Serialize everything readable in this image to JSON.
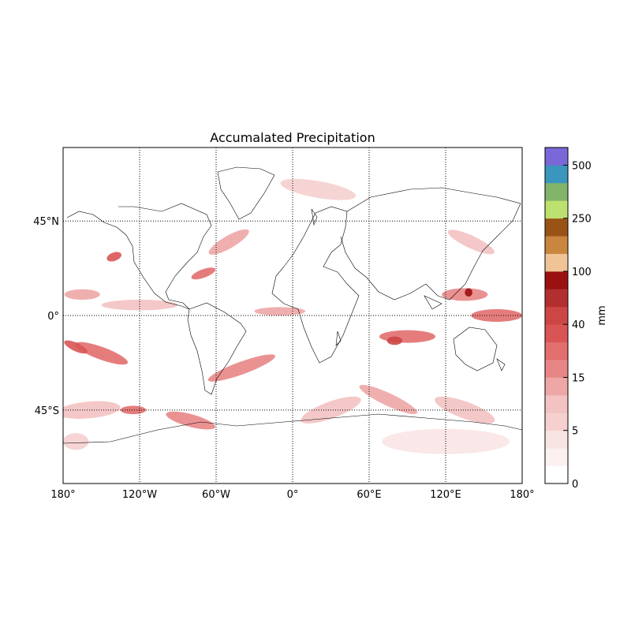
{
  "map": {
    "title": "Accumalated Precipitation",
    "projection": "cylindrical",
    "lon_range": [
      -180,
      180
    ],
    "lat_range": [
      -80,
      80
    ],
    "meridians": [
      {
        "lon": -180,
        "label": "180°"
      },
      {
        "lon": -120,
        "label": "120°W"
      },
      {
        "lon": -60,
        "label": "60°W"
      },
      {
        "lon": 0,
        "label": "0°"
      },
      {
        "lon": 60,
        "label": "60°E"
      },
      {
        "lon": 120,
        "label": "120°E"
      },
      {
        "lon": 180,
        "label": "180°"
      }
    ],
    "parallels": [
      {
        "lat": 45,
        "label": "45°N"
      },
      {
        "lat": 0,
        "label": "0°"
      },
      {
        "lat": -45,
        "label": "45°S"
      }
    ],
    "grid_style": "dotted"
  },
  "colorbar": {
    "units": "mm",
    "levels": [
      0,
      1,
      2.5,
      5,
      7.5,
      10,
      15,
      20,
      30,
      40,
      50,
      70,
      100,
      150,
      200,
      250,
      300,
      400,
      500,
      600,
      750
    ],
    "tick_labels": [
      {
        "value": 0,
        "label": "0"
      },
      {
        "value": 5,
        "label": "5"
      },
      {
        "value": 15,
        "label": "15"
      },
      {
        "value": 40,
        "label": "40"
      },
      {
        "value": 100,
        "label": "100"
      },
      {
        "value": 250,
        "label": "250"
      },
      {
        "value": 500,
        "label": "500"
      }
    ],
    "colors": [
      "#ffffff",
      "#fcf1f1",
      "#f9e4e4",
      "#f6cfcf",
      "#f3c2c2",
      "#eea6a6",
      "#e88686",
      "#e26e6e",
      "#d95555",
      "#cc4646",
      "#b32f2f",
      "#9a1111",
      "#f0c496",
      "#c9863f",
      "#9a5316",
      "#bde16e",
      "#82b46a",
      "#3b96bd",
      "#7b68d8"
    ]
  },
  "precip_regions": [
    {
      "lon": -165,
      "lat": 10,
      "rx": 14,
      "ry": 2.5,
      "rot": 0,
      "level": 5
    },
    {
      "lon": -150,
      "lat": -18,
      "rx": 22,
      "ry": 3,
      "rot": 20,
      "level": 7
    },
    {
      "lon": -170,
      "lat": -15,
      "rx": 10,
      "ry": 2,
      "rot": 25,
      "level": 8
    },
    {
      "lon": -140,
      "lat": 28,
      "rx": 6,
      "ry": 2,
      "rot": -20,
      "level": 8
    },
    {
      "lon": -120,
      "lat": 5,
      "rx": 30,
      "ry": 2.5,
      "rot": 0,
      "level": 4
    },
    {
      "lon": -160,
      "lat": -45,
      "rx": 25,
      "ry": 4,
      "rot": -5,
      "level": 4
    },
    {
      "lon": -125,
      "lat": -45,
      "rx": 10,
      "ry": 2,
      "rot": 0,
      "level": 7
    },
    {
      "lon": -80,
      "lat": -50,
      "rx": 20,
      "ry": 3,
      "rot": 15,
      "level": 6
    },
    {
      "lon": -50,
      "lat": 35,
      "rx": 18,
      "ry": 3,
      "rot": -30,
      "level": 5
    },
    {
      "lon": -70,
      "lat": 20,
      "rx": 10,
      "ry": 2,
      "rot": -20,
      "level": 7
    },
    {
      "lon": -40,
      "lat": -25,
      "rx": 28,
      "ry": 3,
      "rot": -20,
      "level": 6
    },
    {
      "lon": -10,
      "lat": 2,
      "rx": 20,
      "ry": 2,
      "rot": 0,
      "level": 5
    },
    {
      "lon": 20,
      "lat": 60,
      "rx": 30,
      "ry": 4,
      "rot": 10,
      "level": 3
    },
    {
      "lon": 30,
      "lat": -45,
      "rx": 25,
      "ry": 4,
      "rot": -20,
      "level": 4
    },
    {
      "lon": 75,
      "lat": -40,
      "rx": 25,
      "ry": 3,
      "rot": 25,
      "level": 5
    },
    {
      "lon": 90,
      "lat": -10,
      "rx": 22,
      "ry": 3,
      "rot": 0,
      "level": 7
    },
    {
      "lon": 80,
      "lat": -12,
      "rx": 6,
      "ry": 2,
      "rot": 0,
      "level": 9
    },
    {
      "lon": 135,
      "lat": 10,
      "rx": 18,
      "ry": 3,
      "rot": 0,
      "level": 6
    },
    {
      "lon": 138,
      "lat": 11,
      "rx": 3,
      "ry": 2,
      "rot": 0,
      "level": 11
    },
    {
      "lon": 160,
      "lat": 0,
      "rx": 20,
      "ry": 3,
      "rot": 0,
      "level": 7
    },
    {
      "lon": 140,
      "lat": 35,
      "rx": 20,
      "ry": 3,
      "rot": 25,
      "level": 4
    },
    {
      "lon": 135,
      "lat": -45,
      "rx": 25,
      "ry": 4,
      "rot": 20,
      "level": 4
    },
    {
      "lon": -170,
      "lat": -60,
      "rx": 10,
      "ry": 4,
      "rot": 0,
      "level": 3
    },
    {
      "lon": 120,
      "lat": -60,
      "rx": 50,
      "ry": 6,
      "rot": 0,
      "level": 2
    }
  ]
}
